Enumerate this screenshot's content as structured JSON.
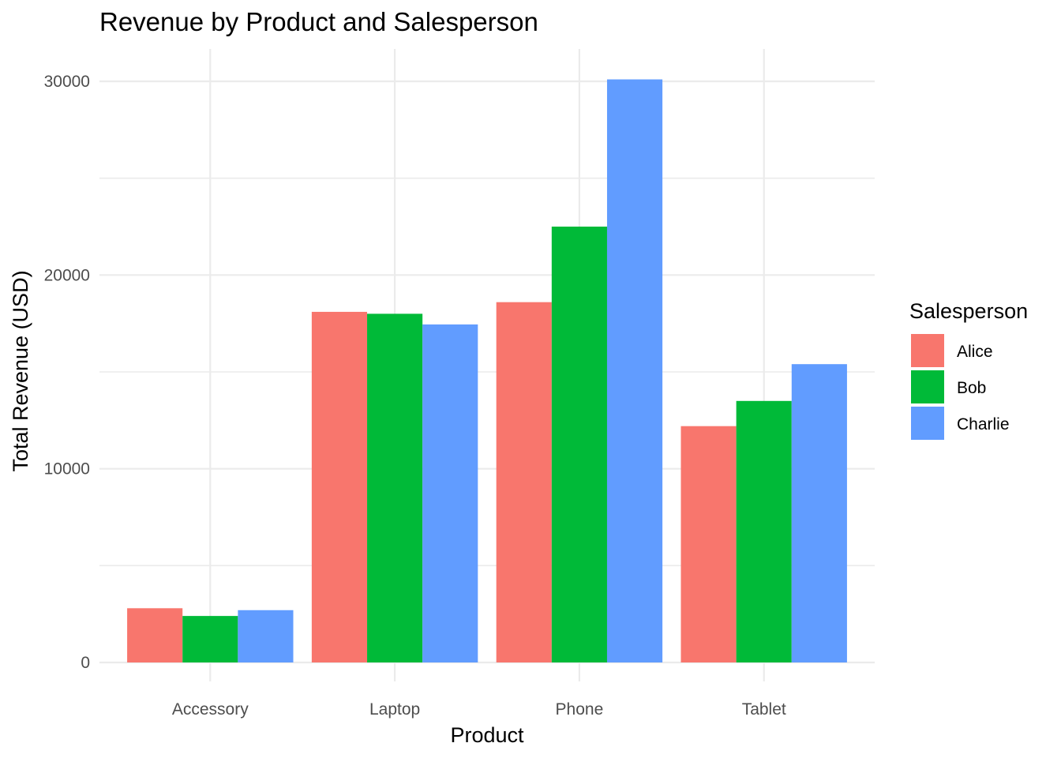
{
  "chart_data": {
    "type": "bar",
    "title": "Revenue by Product and Salesperson",
    "xlabel": "Product",
    "ylabel": "Total Revenue (USD)",
    "categories": [
      "Accessory",
      "Laptop",
      "Phone",
      "Tablet"
    ],
    "series": [
      {
        "name": "Alice",
        "color": "#F8766D",
        "values": [
          2800,
          18100,
          18600,
          12200
        ]
      },
      {
        "name": "Bob",
        "color": "#00BA38",
        "values": [
          2400,
          18000,
          22500,
          13500
        ]
      },
      {
        "name": "Charlie",
        "color": "#619CFF",
        "values": [
          2700,
          17450,
          30100,
          15400
        ]
      }
    ],
    "ylim": [
      0,
      31500
    ],
    "yticks": [
      0,
      10000,
      20000,
      30000
    ],
    "yticks_minor": [
      5000,
      15000,
      25000
    ],
    "grid": true,
    "legend": {
      "title": "Salesperson",
      "position": "right"
    }
  }
}
